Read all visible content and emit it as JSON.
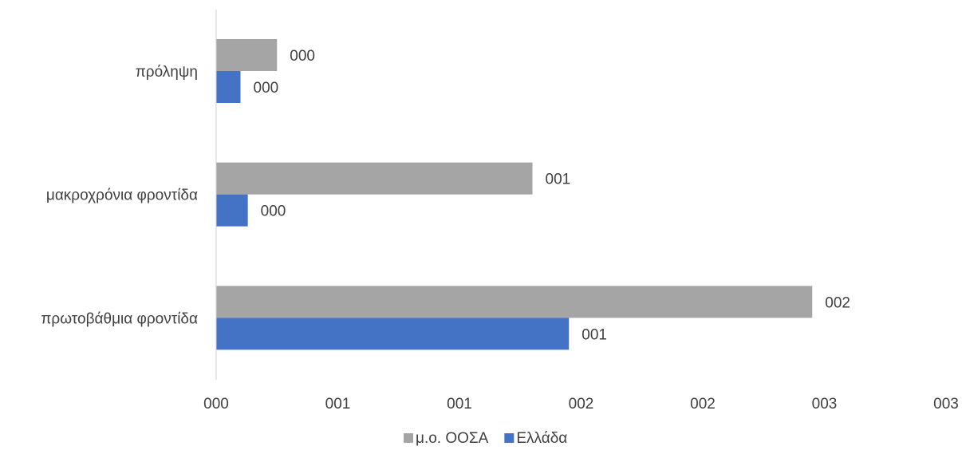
{
  "chart_data": {
    "type": "bar",
    "orientation": "horizontal",
    "categories": [
      "πρόληψη",
      "μακροχρόνια φροντίδα",
      "πρωτοβάθμια φροντίδα"
    ],
    "series": [
      {
        "name": "μ.ο. ΟΟΣΑ",
        "color": "#a5a5a5",
        "values": [
          0.25,
          1.3,
          2.45
        ],
        "data_labels": [
          "000",
          "001",
          "002"
        ]
      },
      {
        "name": "Ελλάδα",
        "color": "#4472c4",
        "values": [
          0.1,
          0.13,
          1.45
        ],
        "data_labels": [
          "000",
          "000",
          "001"
        ]
      }
    ],
    "xlim": [
      0,
      3
    ],
    "x_ticks": [
      0,
      0.5,
      1,
      1.5,
      2,
      2.5,
      3
    ],
    "x_tick_labels": [
      "000",
      "001",
      "001",
      "002",
      "002",
      "003",
      "003"
    ],
    "grid": false,
    "legend_position": "bottom",
    "title": "",
    "xlabel": "",
    "ylabel": ""
  }
}
